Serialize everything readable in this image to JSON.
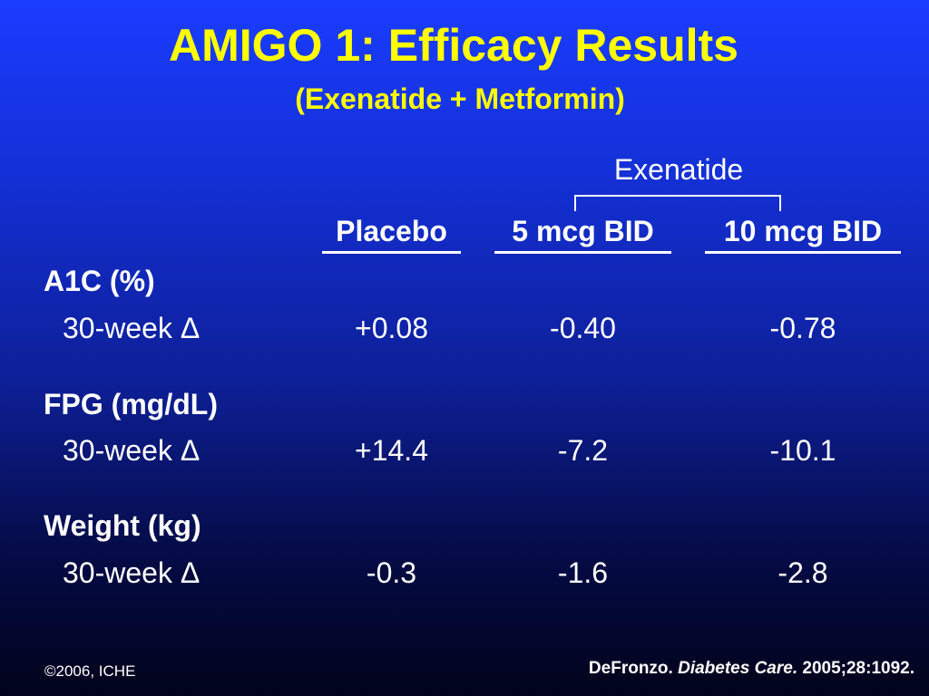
{
  "title": "AMIGO 1: Efficacy Results",
  "subtitle": "(Exenatide + Metformin)",
  "group_label": "Exenatide",
  "columns": [
    "Placebo",
    "5 mcg BID",
    "10 mcg BID"
  ],
  "sections": [
    {
      "metric": "A1C (%)",
      "row_label": "30-week Δ",
      "values": [
        "+0.08",
        "-0.40",
        "-0.78"
      ]
    },
    {
      "metric": "FPG (mg/dL)",
      "row_label": "30-week Δ",
      "values": [
        "+14.4",
        "-7.2",
        "-10.1"
      ]
    },
    {
      "metric": "Weight (kg)",
      "row_label": "30-week Δ",
      "values": [
        "-0.3",
        "-1.6",
        "-2.8"
      ]
    }
  ],
  "footer": {
    "copyright": "©2006, ICHE",
    "citation_author": "DeFronzo.",
    "citation_journal": "Diabetes Care.",
    "citation_ref": "2005;28:1092."
  }
}
